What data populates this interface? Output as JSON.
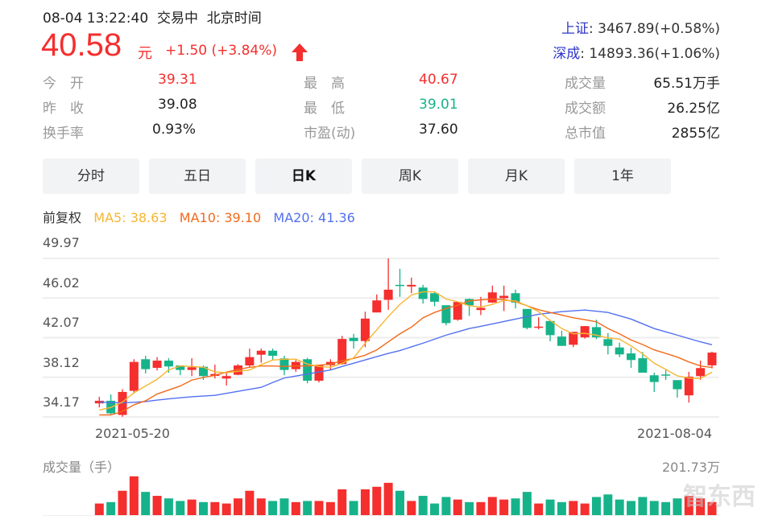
{
  "header": {
    "time": "08-04 13:22:40",
    "status": "交易中",
    "timezone": "北京时间",
    "price": "40.58",
    "unit": "元",
    "change": "+1.50 (+3.84%)",
    "trend_icon": "arrow-up-icon"
  },
  "indices": [
    {
      "name": "上证",
      "value": ": 3467.89(+0.58%)"
    },
    {
      "name": "深成",
      "value": ": 14893.36(+1.06%)"
    }
  ],
  "stats": [
    {
      "label": "今　开",
      "value": "39.31",
      "color": "red"
    },
    {
      "label": "昨　收",
      "value": "39.08",
      "color": "neutral"
    },
    {
      "label": "换手率",
      "value": "0.93%",
      "color": "neutral"
    },
    {
      "label": "最　高",
      "value": "40.67",
      "color": "red"
    },
    {
      "label": "最　低",
      "value": "39.01",
      "color": "green"
    },
    {
      "label": "市盈(动)",
      "value": "37.60",
      "color": "neutral"
    },
    {
      "label": "成交量",
      "value": "65.51万手",
      "color": "neutral"
    },
    {
      "label": "成交额",
      "value": "26.25亿",
      "color": "neutral"
    },
    {
      "label": "总市值",
      "value": "2855亿",
      "color": "neutral"
    }
  ],
  "tabs": [
    {
      "label": "分时"
    },
    {
      "label": "五日"
    },
    {
      "label": "日K",
      "active": true
    },
    {
      "label": "周K"
    },
    {
      "label": "月K"
    },
    {
      "label": "1年"
    }
  ],
  "legend": {
    "adjust": "前复权",
    "ma5": "MA5: 38.63",
    "ma10": "MA10: 39.10",
    "ma20": "MA20: 41.36"
  },
  "colors": {
    "up": "#f52e2e",
    "down": "#16b38a",
    "ma5": "#f7b531",
    "ma10": "#f26a1b",
    "ma20": "#5370f0",
    "index_link": "#2e37c8"
  },
  "watermark": "智东西",
  "chart_data": {
    "type": "candlestick",
    "y_ticks": [
      "49.97",
      "46.02",
      "42.07",
      "38.12",
      "34.17"
    ],
    "ylim": [
      34.17,
      49.97
    ],
    "x_labels": {
      "start": "2021-05-20",
      "end": "2021-08-04"
    },
    "grid": true,
    "ohlc": [
      [
        35.52,
        35.78,
        36.18,
        35.12
      ],
      [
        35.78,
        34.53,
        36.4,
        34.45
      ],
      [
        34.37,
        36.66,
        36.93,
        34.18
      ],
      [
        36.77,
        39.65,
        39.92,
        36.5
      ],
      [
        39.92,
        38.93,
        40.26,
        38.5
      ],
      [
        39.06,
        39.78,
        40.13,
        38.8
      ],
      [
        39.78,
        39.2,
        40.02,
        38.58
      ],
      [
        39.3,
        38.85,
        39.3,
        38.32
      ],
      [
        38.85,
        39.12,
        40.02,
        38.24
      ],
      [
        39.17,
        38.24,
        39.3,
        37.86
      ],
      [
        38.26,
        38.45,
        39.38,
        38.0
      ],
      [
        38.0,
        38.24,
        38.58,
        37.3
      ],
      [
        38.37,
        39.3,
        39.44,
        38.32
      ],
      [
        39.3,
        40.13,
        40.98,
        39.12
      ],
      [
        40.37,
        40.77,
        40.98,
        39.57
      ],
      [
        40.77,
        40.26,
        40.98,
        39.84
      ],
      [
        40.0,
        38.85,
        40.26,
        38.32
      ],
      [
        38.93,
        39.65,
        39.84,
        38.66
      ],
      [
        39.92,
        37.78,
        40.05,
        37.52
      ],
      [
        37.78,
        39.33,
        39.33,
        37.6
      ],
      [
        39.33,
        39.65,
        39.92,
        38.9
      ],
      [
        39.44,
        41.94,
        42.24,
        39.38
      ],
      [
        42.05,
        41.73,
        42.45,
        40.98
      ],
      [
        41.73,
        43.97,
        44.66,
        41.12
      ],
      [
        44.58,
        45.78,
        46.37,
        44.58
      ],
      [
        45.84,
        46.85,
        49.97,
        44.85
      ],
      [
        47.33,
        47.28,
        48.93,
        46.13
      ],
      [
        47.17,
        47.33,
        48.05,
        46.5
      ],
      [
        47.06,
        45.92,
        47.33,
        45.46
      ],
      [
        46.5,
        45.65,
        46.58,
        45.2
      ],
      [
        45.3,
        43.52,
        45.3,
        43.3
      ],
      [
        43.86,
        45.62,
        45.68,
        43.76
      ],
      [
        45.92,
        45.3,
        45.97,
        44.24
      ],
      [
        44.82,
        45.04,
        46.13,
        44.32
      ],
      [
        45.57,
        46.58,
        47.25,
        45.52
      ],
      [
        46.0,
        46.24,
        47.25,
        44.72
      ],
      [
        46.5,
        45.57,
        46.85,
        44.98
      ],
      [
        44.93,
        43.04,
        44.93,
        42.9
      ],
      [
        43.06,
        43.17,
        44.1,
        42.9
      ],
      [
        43.73,
        42.32,
        43.73,
        41.7
      ],
      [
        42.18,
        41.25,
        42.77,
        41.25
      ],
      [
        41.36,
        42.64,
        42.64,
        41.12
      ],
      [
        42.1,
        43.22,
        43.22,
        41.97
      ],
      [
        43.12,
        42.1,
        43.86,
        41.92
      ],
      [
        41.92,
        41.25,
        42.53,
        40.4
      ],
      [
        41.09,
        40.4,
        41.57,
        40.13
      ],
      [
        40.5,
        39.84,
        41.06,
        39.06
      ],
      [
        40.02,
        38.58,
        40.64,
        38.58
      ],
      [
        38.32,
        37.65,
        38.58,
        36.66
      ],
      [
        38.4,
        38.32,
        38.85,
        37.86
      ],
      [
        37.84,
        36.93,
        37.84,
        36.1
      ],
      [
        36.32,
        38.18,
        38.66,
        35.6
      ],
      [
        38.24,
        39.04,
        39.78,
        37.86
      ],
      [
        39.31,
        40.58,
        40.67,
        39.01
      ]
    ],
    "ma5": [
      34.85,
      35.12,
      35.65,
      36.58,
      37.25,
      37.92,
      38.85,
      39.25,
      39.2,
      39.12,
      38.66,
      38.58,
      38.72,
      38.85,
      39.38,
      39.84,
      39.92,
      39.92,
      39.44,
      39.2,
      39.12,
      39.52,
      40.05,
      41.52,
      42.85,
      44.18,
      45.38,
      46.32,
      46.64,
      46.64,
      45.92,
      45.65,
      45.25,
      45.12,
      45.38,
      45.78,
      45.73,
      45.25,
      44.66,
      43.78,
      42.98,
      42.45,
      42.5,
      42.32,
      42.05,
      41.92,
      41.25,
      40.45,
      39.52,
      38.9,
      38.26,
      38.05,
      38.0,
      38.63
    ],
    "ma10": [
      34.37,
      34.37,
      34.72,
      35.38,
      35.78,
      36.45,
      36.85,
      37.25,
      37.84,
      38.1,
      38.32,
      38.64,
      38.9,
      39.12,
      39.25,
      39.25,
      39.2,
      39.25,
      39.25,
      39.33,
      39.44,
      39.78,
      40.0,
      40.32,
      40.85,
      41.65,
      42.45,
      43.12,
      44.05,
      44.58,
      44.98,
      45.3,
      45.73,
      45.84,
      45.92,
      45.86,
      45.65,
      45.25,
      44.85,
      44.58,
      44.32,
      44.05,
      43.86,
      43.65,
      42.98,
      42.45,
      41.84,
      41.38,
      40.85,
      40.5,
      40.13,
      39.65,
      39.25,
      39.1
    ],
    "ma20": [
      35.65,
      35.6,
      35.57,
      35.63,
      35.7,
      35.85,
      35.97,
      36.08,
      36.18,
      36.25,
      36.32,
      36.52,
      36.72,
      36.92,
      37.12,
      37.6,
      38.05,
      38.25,
      38.45,
      38.65,
      38.85,
      39.2,
      39.52,
      39.85,
      40.18,
      40.5,
      40.78,
      41.15,
      41.52,
      41.92,
      42.32,
      42.65,
      42.98,
      43.2,
      43.44,
      43.68,
      43.92,
      44.16,
      44.4,
      44.53,
      44.66,
      44.74,
      44.82,
      44.7,
      44.58,
      44.25,
      43.92,
      43.45,
      42.98,
      42.65,
      42.32,
      41.98,
      41.65,
      41.36
    ],
    "volume": {
      "label": "成交量（手）",
      "max_label": "201.73万",
      "max": 201.73,
      "values": [
        58.2,
        65.3,
        122.1,
        194.5,
        116.4,
        96.6,
        83.8,
        71,
        78.1,
        65.3,
        65.3,
        58.2,
        83.8,
        122.1,
        83.8,
        71,
        83.8,
        65.3,
        71,
        71,
        65.3,
        129.2,
        71,
        129.2,
        142,
        161.9,
        122.1,
        71,
        96.6,
        58.2,
        90.9,
        78.1,
        65.3,
        65.3,
        90.9,
        78.1,
        83.8,
        116.4,
        58.2,
        78.1,
        65.3,
        71,
        58.2,
        90.9,
        103.7,
        78.1,
        71,
        90.9,
        71,
        65.3,
        83.8,
        96.6,
        83.8,
        65.51
      ]
    }
  }
}
